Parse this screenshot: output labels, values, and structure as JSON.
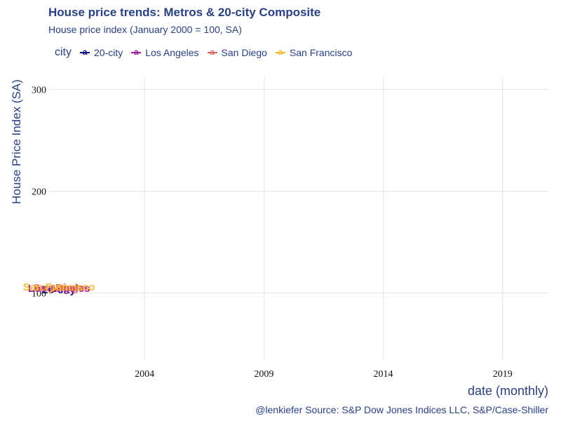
{
  "chart_data": {
    "type": "line",
    "title": "House price trends: Metros & 20-city Composite",
    "subtitle": "House price index (January 2000 = 100, SA)",
    "xlabel": "date (monthly)",
    "ylabel": "House Price Index (SA)",
    "caption": "@lenkiefer Source: S&P Dow Jones Indices LLC, S&P/Case-Shiller",
    "legend_title": "city",
    "legend_position": "top-left",
    "grid": true,
    "x_ticks": [
      "2004",
      "2009",
      "2014",
      "2019"
    ],
    "y_ticks": [
      "100",
      "200",
      "300"
    ],
    "x_range": [
      "2000-01",
      "2020-12"
    ],
    "ylim": [
      35,
      312
    ],
    "x": [
      "2000-01",
      "2000-02",
      "2000-03",
      "2000-04",
      "2000-05",
      "2000-06"
    ],
    "series": [
      {
        "name": "20-city",
        "color": "#0d0887",
        "values": [
          100,
          100.7,
          101.4,
          102.0,
          102.6,
          103.1
        ]
      },
      {
        "name": "Los Angeles",
        "color": "#9c179e",
        "values": [
          100,
          101.0,
          101.9,
          102.8,
          103.6,
          104.5
        ]
      },
      {
        "name": "San Diego",
        "color": "#e16462",
        "values": [
          100,
          101.2,
          102.3,
          103.4,
          104.4,
          105.4
        ]
      },
      {
        "name": "San Francisco",
        "color": "#fcb82e",
        "values": [
          100,
          101.6,
          103.0,
          104.2,
          105.3,
          106.0
        ]
      }
    ]
  }
}
